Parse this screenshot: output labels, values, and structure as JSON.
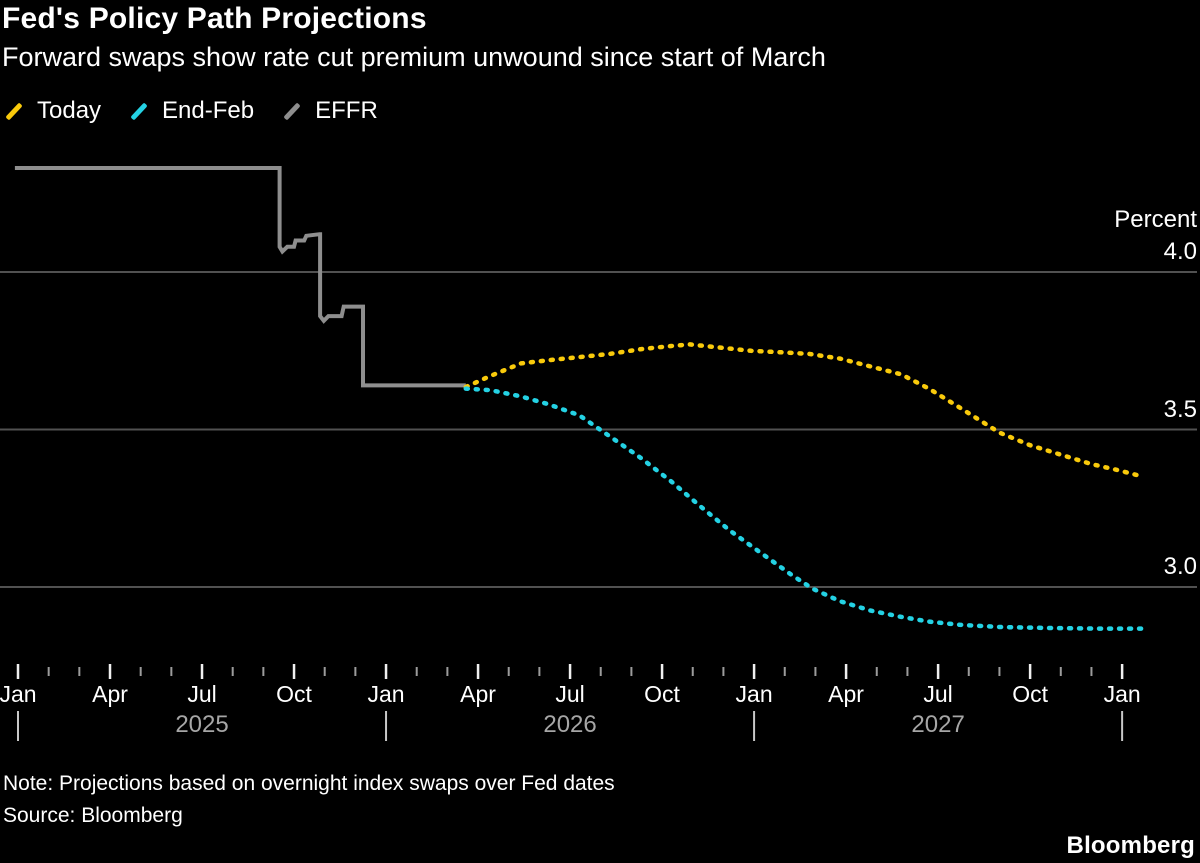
{
  "header": {
    "title": "Fed's Policy Path Projections",
    "subtitle": "Forward swaps show rate cut premium unwound since start of March"
  },
  "legend": {
    "items": [
      {
        "label": "Today",
        "color": "#F9CA0B"
      },
      {
        "label": "End-Feb",
        "color": "#24D2E4"
      },
      {
        "label": "EFFR",
        "color": "#8E8E8E"
      }
    ]
  },
  "chart_data": {
    "type": "line",
    "title": "Fed's Policy Path Projections",
    "unit_label": "Percent",
    "background": "#000000",
    "grid": true,
    "gridline_color": "#515151",
    "y_range": [
      2.75,
      4.45
    ],
    "y_axis": {
      "ticks": [
        {
          "value": 4.0,
          "label": "4.0"
        },
        {
          "value": 3.5,
          "label": "3.5"
        },
        {
          "value": 3.0,
          "label": "3.0"
        }
      ]
    },
    "x_axis": {
      "unit": "months_since_jan_2025",
      "months_total": 36,
      "major_every": 3,
      "month_labels": [
        "Jan",
        "Apr",
        "Jul",
        "Oct",
        "Jan",
        "Apr",
        "Jul",
        "Oct",
        "Jan",
        "Apr",
        "Jul",
        "Oct",
        "Jan"
      ],
      "year_separators_at": [
        0,
        12,
        24,
        36
      ],
      "year_labels": [
        {
          "text": "2025",
          "at_month": 6
        },
        {
          "text": "2026",
          "at_month": 18
        },
        {
          "text": "2027",
          "at_month": 30
        }
      ]
    },
    "series": [
      {
        "name": "EFFR",
        "color": "#8E8E8E",
        "style": "solid",
        "points": [
          [
            -0.1,
            4.33
          ],
          [
            8.53,
            4.33
          ],
          [
            8.53,
            4.08
          ],
          [
            8.62,
            4.065
          ],
          [
            8.78,
            4.08
          ],
          [
            9.0,
            4.08
          ],
          [
            9.05,
            4.1
          ],
          [
            9.33,
            4.1
          ],
          [
            9.4,
            4.115
          ],
          [
            9.83,
            4.12
          ],
          [
            9.85,
            4.12
          ],
          [
            9.85,
            3.86
          ],
          [
            9.97,
            3.845
          ],
          [
            10.12,
            3.86
          ],
          [
            10.55,
            3.86
          ],
          [
            10.62,
            3.89
          ],
          [
            11.23,
            3.89
          ],
          [
            11.25,
            3.89
          ],
          [
            11.25,
            3.64
          ],
          [
            14.6,
            3.64
          ]
        ]
      },
      {
        "name": "Today",
        "color": "#F9CA0B",
        "style": "dotted",
        "points": [
          [
            14.6,
            3.635
          ],
          [
            15.4,
            3.67
          ],
          [
            16.4,
            3.71
          ],
          [
            17.3,
            3.72
          ],
          [
            18.3,
            3.73
          ],
          [
            19.3,
            3.74
          ],
          [
            20.3,
            3.755
          ],
          [
            21.3,
            3.765
          ],
          [
            21.9,
            3.77
          ],
          [
            22.9,
            3.76
          ],
          [
            23.9,
            3.75
          ],
          [
            24.9,
            3.745
          ],
          [
            25.8,
            3.74
          ],
          [
            26.8,
            3.725
          ],
          [
            27.8,
            3.7
          ],
          [
            28.8,
            3.675
          ],
          [
            29.7,
            3.63
          ],
          [
            30.7,
            3.57
          ],
          [
            32.0,
            3.49
          ],
          [
            33.0,
            3.45
          ],
          [
            34.0,
            3.42
          ],
          [
            35.0,
            3.39
          ],
          [
            35.9,
            3.37
          ],
          [
            36.7,
            3.35
          ]
        ]
      },
      {
        "name": "End-Feb",
        "color": "#24D2E4",
        "style": "dotted",
        "points": [
          [
            14.6,
            3.63
          ],
          [
            15.4,
            3.625
          ],
          [
            16.4,
            3.605
          ],
          [
            17.3,
            3.58
          ],
          [
            18.3,
            3.545
          ],
          [
            19.3,
            3.478
          ],
          [
            20.3,
            3.41
          ],
          [
            21.3,
            3.335
          ],
          [
            22.2,
            3.26
          ],
          [
            23.2,
            3.18
          ],
          [
            24.2,
            3.11
          ],
          [
            25.2,
            3.04
          ],
          [
            25.9,
            2.995
          ],
          [
            26.8,
            2.955
          ],
          [
            27.8,
            2.925
          ],
          [
            28.8,
            2.905
          ],
          [
            29.7,
            2.89
          ],
          [
            30.7,
            2.88
          ],
          [
            32.0,
            2.873
          ],
          [
            33.6,
            2.87
          ],
          [
            35.2,
            2.868
          ],
          [
            36.7,
            2.868
          ]
        ]
      }
    ]
  },
  "footer": {
    "note": "Note: Projections based on overnight index swaps over Fed dates",
    "source": "Source: Bloomberg",
    "logo": "Bloomberg"
  }
}
